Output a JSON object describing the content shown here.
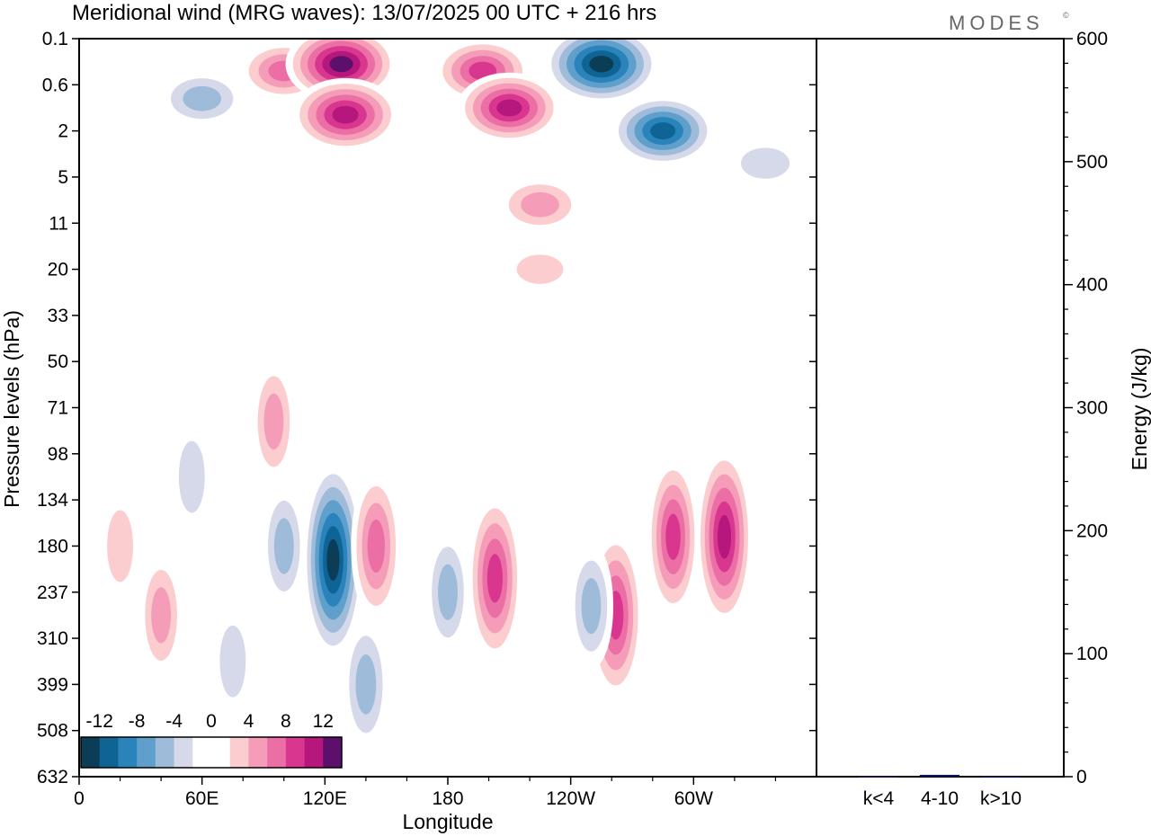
{
  "header": {
    "title": "Meridional wind (MRG waves):  13/07/2025  00 UTC  + 216 hrs",
    "brand": "MODES",
    "brand_mark": "©"
  },
  "chart_data": [
    {
      "type": "heatmap",
      "title": "Meridional wind (MRG waves):  13/07/2025  00 UTC  + 216 hrs",
      "xlabel": "Longitude",
      "ylabel": "Pressure levels (hPa)",
      "x_ticks": [
        "0",
        "60E",
        "120E",
        "180",
        "120W",
        "60W"
      ],
      "x_range_deg_east": [
        0,
        360
      ],
      "y_ticks": [
        "0.1",
        "0.6",
        "2",
        "5",
        "11",
        "20",
        "33",
        "50",
        "71",
        "98",
        "134",
        "180",
        "237",
        "310",
        "399",
        "508",
        "632"
      ],
      "y_scale": "level index (top 0.1 hPa to bottom 632 hPa)",
      "colorbar": {
        "labels": [
          "-12",
          "-8",
          "-4",
          "0",
          "4",
          "8",
          "12"
        ],
        "levels": [
          -14,
          -12,
          -10,
          -8,
          -6,
          -4,
          -2,
          0,
          2,
          4,
          6,
          8,
          10,
          12,
          14
        ],
        "colors": [
          "#0c3d56",
          "#0e6495",
          "#2b83bb",
          "#5e9fcb",
          "#9ebcd9",
          "#d5d9ea",
          "#ffffff",
          "#ffffff",
          "#fbcdcf",
          "#f59cb9",
          "#eb6fa5",
          "#d9378f",
          "#b5177d",
          "#5c0f6b"
        ],
        "placement": "bottom-left"
      },
      "features": [
        {
          "lon": 60,
          "level_idx": 1.3,
          "value": -7
        },
        {
          "lon": 100,
          "level_idx": 0.7,
          "value": 8
        },
        {
          "lon": 128,
          "level_idx": 0.55,
          "value": 14
        },
        {
          "lon": 130,
          "level_idx": 1.65,
          "value": 13
        },
        {
          "lon": 197,
          "level_idx": 0.7,
          "value": 10
        },
        {
          "lon": 210,
          "level_idx": 1.5,
          "value": 12
        },
        {
          "lon": 255,
          "level_idx": 0.55,
          "value": -15
        },
        {
          "lon": 285,
          "level_idx": 2.0,
          "value": -12
        },
        {
          "lon": 335,
          "level_idx": 2.7,
          "value": -5
        },
        {
          "lon": 124,
          "level_idx": 11.3,
          "value": -14
        },
        {
          "lon": 100,
          "level_idx": 11.0,
          "value": -6
        },
        {
          "lon": 145,
          "level_idx": 11.0,
          "value": 9
        },
        {
          "lon": 203,
          "level_idx": 11.7,
          "value": 11
        },
        {
          "lon": 262,
          "level_idx": 12.5,
          "value": 11
        },
        {
          "lon": 250,
          "level_idx": 12.3,
          "value": -6
        },
        {
          "lon": 290,
          "level_idx": 10.8,
          "value": 10
        },
        {
          "lon": 315,
          "level_idx": 10.8,
          "value": 12
        },
        {
          "lon": 40,
          "level_idx": 12.5,
          "value": 6
        },
        {
          "lon": 20,
          "level_idx": 11.0,
          "value": 5
        },
        {
          "lon": 180,
          "level_idx": 12.0,
          "value": -6
        },
        {
          "lon": 140,
          "level_idx": 14.0,
          "value": -7
        },
        {
          "lon": 75,
          "level_idx": 13.5,
          "value": -5
        },
        {
          "lon": 95,
          "level_idx": 8.3,
          "value": 6
        },
        {
          "lon": 55,
          "level_idx": 9.5,
          "value": -5
        },
        {
          "lon": 225,
          "level_idx": 3.6,
          "value": 7
        },
        {
          "lon": 225,
          "level_idx": 5.0,
          "value": 4
        }
      ]
    },
    {
      "type": "bar",
      "ylabel": "Energy (J/kg)",
      "ylim": [
        0,
        600
      ],
      "y_ticks": [
        "0",
        "100",
        "200",
        "300",
        "400",
        "500",
        "600"
      ],
      "categories": [
        "k<4",
        "4-10",
        "k>10"
      ],
      "values": [
        0.5,
        1.5,
        0.3
      ],
      "bar_color": "#101060"
    }
  ]
}
